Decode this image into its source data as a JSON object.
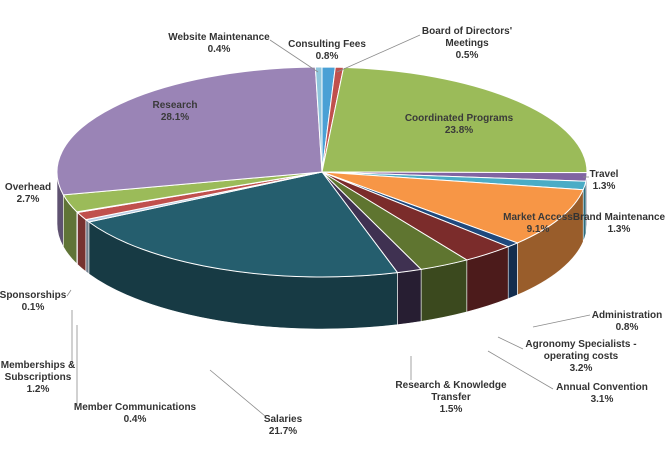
{
  "chart_data": {
    "type": "pie",
    "title": "",
    "legend": "none",
    "slices": [
      {
        "name": "Consulting Fees",
        "value_label": "0.8%",
        "value": 0.8,
        "color": "#4aa0d5"
      },
      {
        "name": "Board of Directors' Meetings",
        "value_label": "0.5%",
        "value": 0.5,
        "color": "#c0504d"
      },
      {
        "name": "Coordinated Programs",
        "value_label": "23.8%",
        "value": 23.8,
        "color": "#9bbb59"
      },
      {
        "name": "Travel",
        "value_label": "1.3%",
        "value": 1.3,
        "color": "#8064a2"
      },
      {
        "name": "Brand Maintenance",
        "value_label": "1.3%",
        "value": 1.3,
        "color": "#4bacc6"
      },
      {
        "name": "Market Access",
        "value_label": "9.1%",
        "value": 9.1,
        "color": "#f79646"
      },
      {
        "name": "Administration",
        "value_label": "0.8%",
        "value": 0.8,
        "color": "#2c4d75"
      },
      {
        "name": "Agronomy Specialists - operating costs",
        "value_label": "3.2%",
        "value": 3.2,
        "color": "#772c2a"
      },
      {
        "name": "Annual Convention",
        "value_label": "3.1%",
        "value": 3.1,
        "color": "#5f7530"
      },
      {
        "name": "Research & Knowledge Transfer",
        "value_label": "1.5%",
        "value": 1.5,
        "color": "#4d3b62"
      },
      {
        "name": "Salaries",
        "value_label": "21.7%",
        "value": 21.7,
        "color": "#276a7c"
      },
      {
        "name": "Member Communications",
        "value_label": "0.4%",
        "value": 0.4,
        "color": "#b65708"
      },
      {
        "name": "Memberships & Subscriptions",
        "value_label": "1.2%",
        "value": 1.2,
        "color": "#729aca"
      },
      {
        "name": "Sponsorships",
        "value_label": "0.1%",
        "value": 0.1,
        "color": "#4f81bd"
      },
      {
        "name": "Overhead",
        "value_label": "2.7%",
        "value": 2.7,
        "color": "#d99694"
      },
      {
        "name": "Research",
        "value_label": "28.1%",
        "value": 28.1,
        "color": "#b3cc7f"
      },
      {
        "name": "Website Maintenance",
        "value_label": "0.4%",
        "value": 0.4,
        "color": "#9a82b8"
      }
    ]
  }
}
